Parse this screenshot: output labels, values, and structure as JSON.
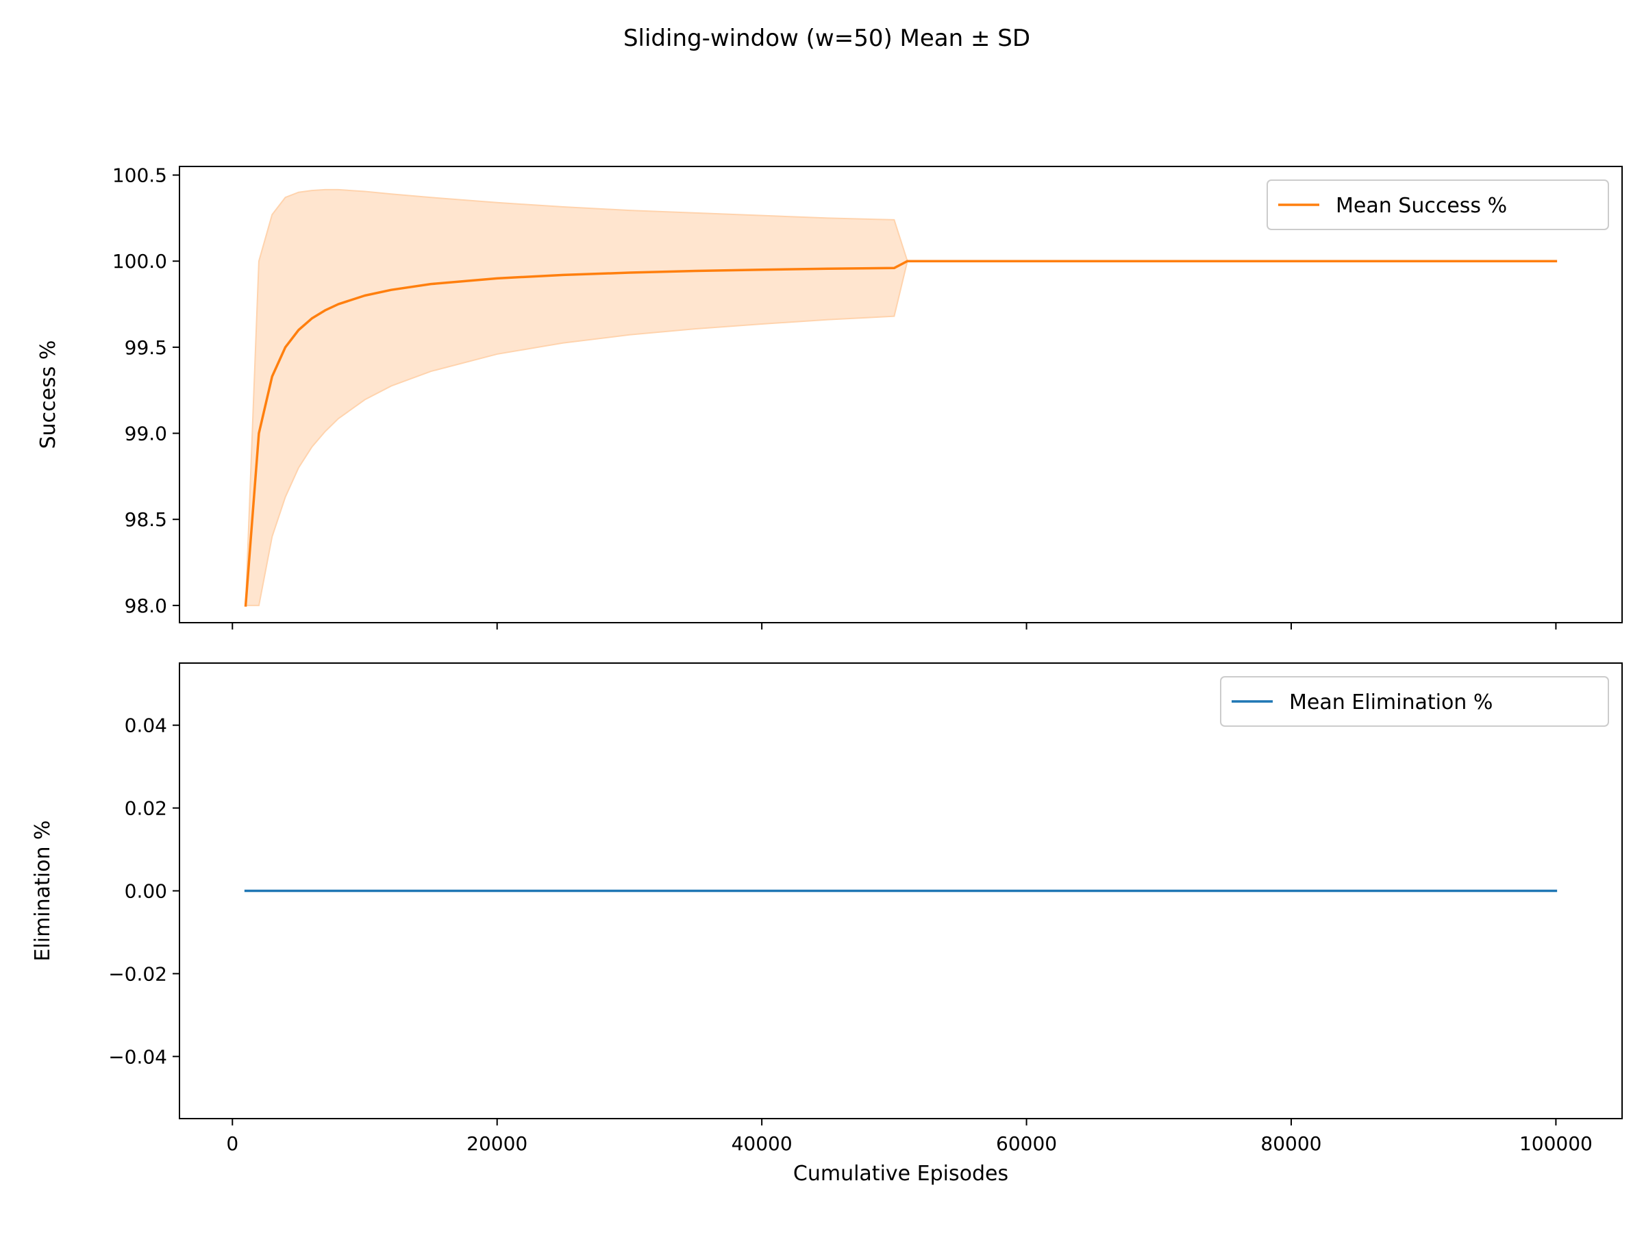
{
  "chart_data": [
    {
      "type": "line",
      "suptitle": "Sliding-window (w=50) Mean ± SD",
      "xlabel": "",
      "ylabel": "Success %",
      "xlim": [
        -4000,
        105000
      ],
      "ylim": [
        97.9,
        100.55
      ],
      "xticks": [
        0,
        20000,
        40000,
        60000,
        80000,
        100000
      ],
      "yticks": [
        {
          "value": 98.0,
          "label": "98.0"
        },
        {
          "value": 98.5,
          "label": "98.5"
        },
        {
          "value": 99.0,
          "label": "99.0"
        },
        {
          "value": 99.5,
          "label": "99.5"
        },
        {
          "value": 100.0,
          "label": "100.0"
        },
        {
          "value": 100.5,
          "label": "100.5"
        }
      ],
      "legend": {
        "placement": "top-right",
        "entries": [
          "Mean Success %"
        ]
      },
      "series": [
        {
          "name": "Mean Success %",
          "color": "#ff7f0e",
          "band_color": "#ffe5cf",
          "band_edge_color": "#ffd3ad",
          "x": [
            1000,
            2000,
            3000,
            4000,
            5000,
            6000,
            7000,
            8000,
            10000,
            12000,
            15000,
            20000,
            25000,
            30000,
            35000,
            40000,
            45000,
            50000,
            51000,
            60000,
            70000,
            80000,
            90000,
            100000
          ],
          "y": [
            98.0,
            99.0,
            99.33,
            99.5,
            99.6,
            99.667,
            99.714,
            99.75,
            99.8,
            99.833,
            99.867,
            99.9,
            99.92,
            99.933,
            99.943,
            99.95,
            99.956,
            99.96,
            100.0,
            100.0,
            100.0,
            100.0,
            100.0,
            100.0
          ],
          "upper": [
            98.0,
            100.0,
            100.27,
            100.37,
            100.4,
            100.41,
            100.415,
            100.415,
            100.405,
            100.39,
            100.37,
            100.34,
            100.315,
            100.295,
            100.28,
            100.265,
            100.25,
            100.24,
            100.0,
            100.0,
            100.0,
            100.0,
            100.0,
            100.0
          ],
          "lower": [
            98.0,
            98.0,
            98.4,
            98.63,
            98.8,
            98.92,
            99.01,
            99.085,
            99.195,
            99.275,
            99.36,
            99.46,
            99.525,
            99.572,
            99.607,
            99.635,
            99.66,
            99.68,
            100.0,
            100.0,
            100.0,
            100.0,
            100.0,
            100.0
          ]
        }
      ]
    },
    {
      "type": "line",
      "xlabel": "Cumulative Episodes",
      "ylabel": "Elimination %",
      "xlim": [
        -4000,
        105000
      ],
      "ylim": [
        -0.055,
        0.055
      ],
      "xticks": [
        0,
        20000,
        40000,
        60000,
        80000,
        100000
      ],
      "yticks": [
        {
          "value": 0.04,
          "label": "0.04"
        },
        {
          "value": 0.02,
          "label": "0.02"
        },
        {
          "value": 0.0,
          "label": "0.00"
        },
        {
          "value": -0.02,
          "label": "−0.02"
        },
        {
          "value": -0.04,
          "label": "−0.04"
        }
      ],
      "legend": {
        "placement": "top-right",
        "entries": [
          "Mean Elimination %"
        ]
      },
      "series": [
        {
          "name": "Mean Elimination %",
          "color": "#1f77b4",
          "x": [
            1000,
            100000
          ],
          "y": [
            0.0,
            0.0
          ]
        }
      ]
    }
  ]
}
